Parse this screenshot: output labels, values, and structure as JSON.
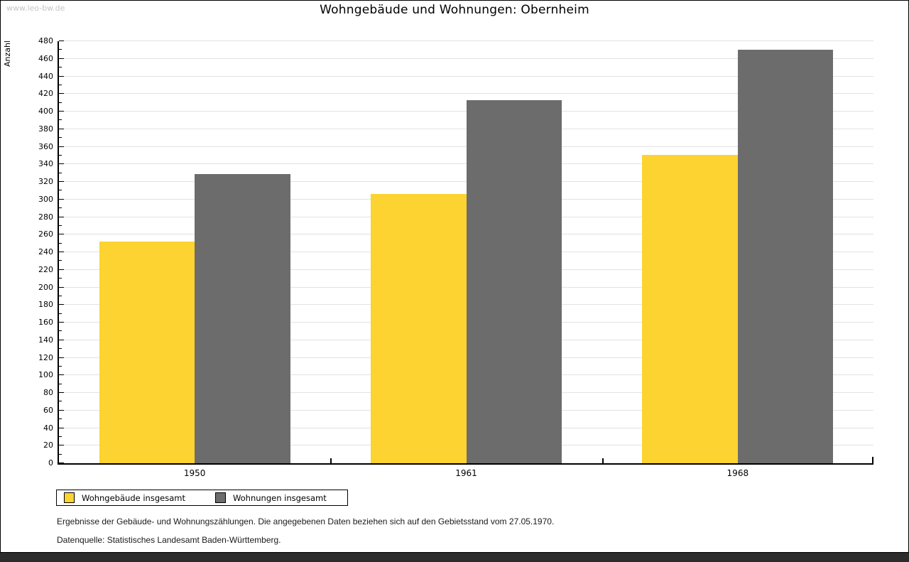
{
  "page": {
    "watermark": "www.leo-bw.de",
    "footnote_line1": "Ergebnisse der Gebäude- und Wohnungszählungen. Die angegebenen Daten beziehen sich auf den Gebietsstand vom 27.05.1970.",
    "footnote_line2": "Datenquelle: Statistisches Landesamt Baden-Württemberg."
  },
  "chart_data": {
    "type": "bar",
    "title": "Wohngebäude und Wohnungen: Obernheim",
    "ylabel": "Anzahl",
    "xlabel": "",
    "categories": [
      "1950",
      "1961",
      "1968"
    ],
    "series": [
      {
        "name": "Wohngebäude insgesamt",
        "color": "#FCD330",
        "values": [
          252,
          306,
          351
        ]
      },
      {
        "name": "Wohnungen insgesamt",
        "color": "#6C6C6C",
        "values": [
          329,
          413,
          470
        ]
      }
    ],
    "ylim": [
      0,
      480
    ],
    "ytick_major": 20,
    "ytick_minor": 10,
    "grid": true,
    "gridline_color": "#e2e2e2",
    "legend_position": "bottom-left"
  }
}
